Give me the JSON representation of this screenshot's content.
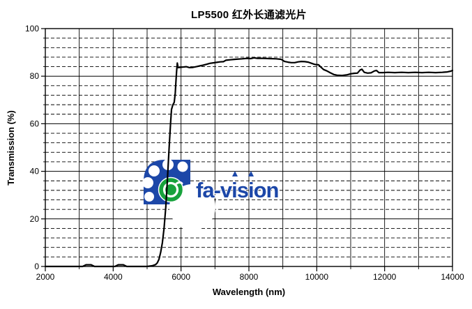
{
  "page": {
    "background": "#ffffff"
  },
  "chart_data": {
    "type": "line",
    "title": "LP5500 红外长通滤光片",
    "xlabel": "Wavelength (nm)",
    "ylabel": "Transmission (%)",
    "xlim": [
      2000,
      14000
    ],
    "ylim": [
      0,
      100
    ],
    "x_ticks": [
      2000,
      4000,
      6000,
      8000,
      10000,
      12000,
      14000
    ],
    "y_ticks": [
      0,
      20,
      40,
      60,
      80,
      100
    ],
    "x_minor_step": 1000,
    "y_minor_step": 4,
    "grid": {
      "vertical": "solid every 1000 nm",
      "horizontal_major": "solid every 20 %",
      "horizontal_minor": "dashed every 4 %"
    },
    "line_color": "#000000",
    "series": [
      {
        "name": "LP5500 transmission",
        "points": [
          [
            2000,
            0
          ],
          [
            2400,
            0
          ],
          [
            2800,
            0
          ],
          [
            3100,
            0
          ],
          [
            3200,
            0.7
          ],
          [
            3350,
            0.7
          ],
          [
            3450,
            0
          ],
          [
            3750,
            0
          ],
          [
            4050,
            0
          ],
          [
            4150,
            0.7
          ],
          [
            4300,
            0.7
          ],
          [
            4400,
            0
          ],
          [
            4700,
            0
          ],
          [
            5000,
            0
          ],
          [
            5150,
            0.3
          ],
          [
            5250,
            0.8
          ],
          [
            5300,
            1.5
          ],
          [
            5350,
            3
          ],
          [
            5400,
            6
          ],
          [
            5450,
            10
          ],
          [
            5500,
            16
          ],
          [
            5550,
            25
          ],
          [
            5600,
            37
          ],
          [
            5650,
            50
          ],
          [
            5690,
            60
          ],
          [
            5720,
            66
          ],
          [
            5760,
            68
          ],
          [
            5800,
            69
          ],
          [
            5830,
            73
          ],
          [
            5850,
            78
          ],
          [
            5870,
            82
          ],
          [
            5890,
            85.5
          ],
          [
            5915,
            83.6
          ],
          [
            5960,
            83.7
          ],
          [
            6050,
            83.8
          ],
          [
            6150,
            84
          ],
          [
            6250,
            83.6
          ],
          [
            6350,
            83.7
          ],
          [
            6450,
            84
          ],
          [
            6550,
            84.3
          ],
          [
            6650,
            84.6
          ],
          [
            6750,
            85
          ],
          [
            6850,
            85.4
          ],
          [
            6950,
            85.6
          ],
          [
            7050,
            85.8
          ],
          [
            7150,
            86
          ],
          [
            7250,
            86.1
          ],
          [
            7320,
            86.7
          ],
          [
            7450,
            86.9
          ],
          [
            7600,
            87.1
          ],
          [
            7800,
            87.3
          ],
          [
            7950,
            87.5
          ],
          [
            8050,
            87.4
          ],
          [
            8150,
            87.7
          ],
          [
            8250,
            87.5
          ],
          [
            8400,
            87.5
          ],
          [
            8600,
            87.4
          ],
          [
            8800,
            87.3
          ],
          [
            8950,
            87.1
          ],
          [
            9050,
            86.2
          ],
          [
            9150,
            85.9
          ],
          [
            9250,
            85.7
          ],
          [
            9350,
            85.7
          ],
          [
            9450,
            86
          ],
          [
            9550,
            86.2
          ],
          [
            9650,
            86.1
          ],
          [
            9750,
            85.9
          ],
          [
            9850,
            85.4
          ],
          [
            9950,
            84.9
          ],
          [
            10050,
            84.8
          ],
          [
            10120,
            83.8
          ],
          [
            10200,
            82.8
          ],
          [
            10300,
            82.2
          ],
          [
            10400,
            81.4
          ],
          [
            10500,
            80.7
          ],
          [
            10600,
            80.4
          ],
          [
            10750,
            80.3
          ],
          [
            10900,
            80.6
          ],
          [
            11000,
            81
          ],
          [
            11100,
            81.2
          ],
          [
            11200,
            81.3
          ],
          [
            11280,
            82.6
          ],
          [
            11330,
            82.9
          ],
          [
            11400,
            81.6
          ],
          [
            11500,
            81.3
          ],
          [
            11600,
            81.4
          ],
          [
            11700,
            82.2
          ],
          [
            11760,
            82.4
          ],
          [
            11830,
            81.5
          ],
          [
            11950,
            81.5
          ],
          [
            12100,
            81.6
          ],
          [
            12300,
            81.5
          ],
          [
            12500,
            81.6
          ],
          [
            12700,
            81.5
          ],
          [
            12900,
            81.6
          ],
          [
            13100,
            81.5
          ],
          [
            13300,
            81.6
          ],
          [
            13500,
            81.5
          ],
          [
            13700,
            81.6
          ],
          [
            13850,
            81.8
          ],
          [
            13950,
            82.1
          ],
          [
            14000,
            82.4
          ]
        ]
      }
    ]
  },
  "watermark": {
    "text": "fa-vision",
    "blue": "#1c47a8",
    "green": "#17a23b"
  }
}
